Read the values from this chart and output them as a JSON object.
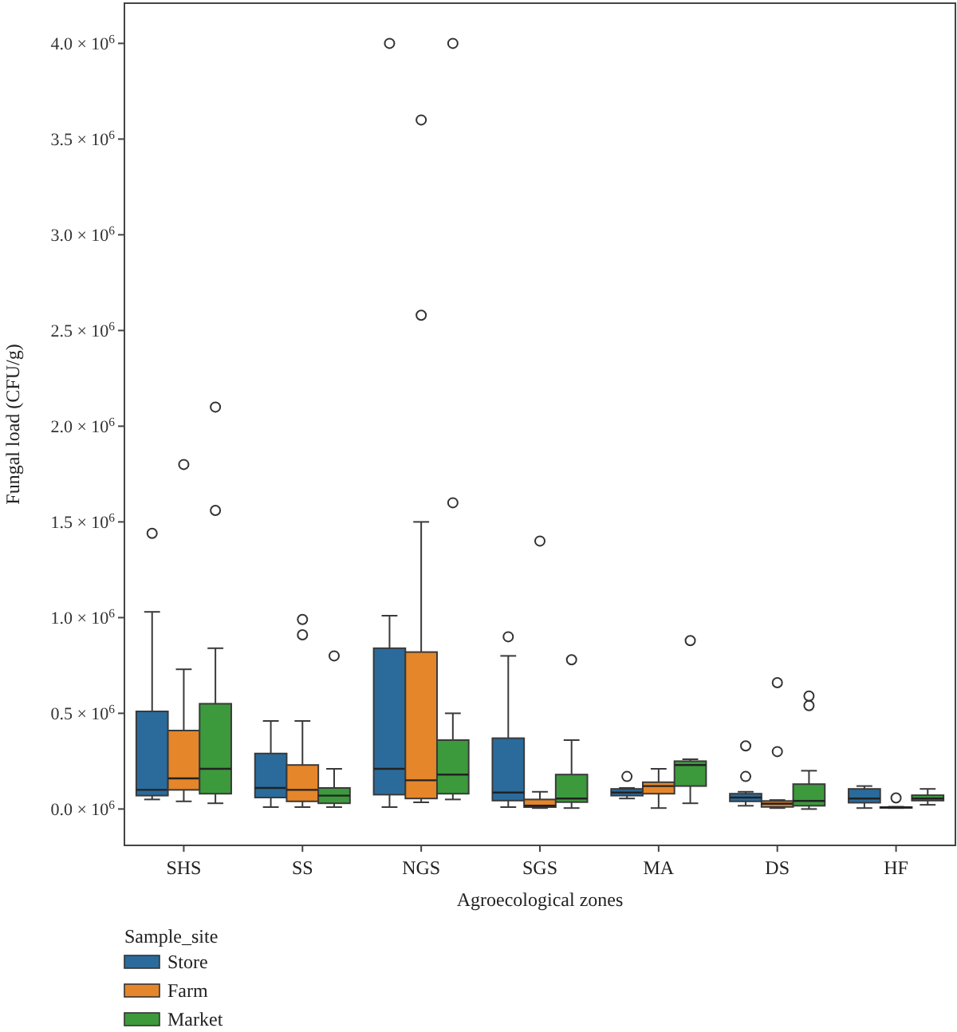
{
  "chart_data": {
    "type": "box",
    "xlabel": "Agroecological zones",
    "ylabel": "Fungal load (CFU/g)",
    "legend_title": "Sample_site",
    "legend": "bottom left",
    "categories": [
      "SHS",
      "SS",
      "NGS",
      "SGS",
      "MA",
      "DS",
      "HF"
    ],
    "ylim": [
      -190000,
      4210000
    ],
    "yticks": [
      {
        "value": 0,
        "label": "0.0 × 10$^{6}$"
      },
      {
        "value": 500000,
        "label": "0.5 × 10$^{6}$"
      },
      {
        "value": 1000000,
        "label": "1.0 × 10$^{6}$"
      },
      {
        "value": 1500000,
        "label": "1.5 × 10$^{6}$"
      },
      {
        "value": 2000000,
        "label": "2.0 × 10$^{6}$"
      },
      {
        "value": 2500000,
        "label": "2.5 × 10$^{6}$"
      },
      {
        "value": 3000000,
        "label": "3.0 × 10$^{6}$"
      },
      {
        "value": 3500000,
        "label": "3.5 × 10$^{6}$"
      },
      {
        "value": 4000000,
        "label": "4.0 × 10$^{6}$"
      }
    ],
    "series": [
      {
        "name": "Store",
        "color": "#2a6b9c",
        "boxes": [
          {
            "low": 50000,
            "q1": 70000,
            "median": 100000,
            "q3": 510000,
            "high": 1030000,
            "outliers": [
              1440000
            ]
          },
          {
            "low": 10000,
            "q1": 60000,
            "median": 110000,
            "q3": 290000,
            "high": 460000
          },
          {
            "low": 10000,
            "q1": 75000,
            "median": 210000,
            "q3": 840000,
            "high": 1010000,
            "outliers": [
              4000000
            ]
          },
          {
            "low": 10000,
            "q1": 44000,
            "median": 86000,
            "q3": 370000,
            "high": 800000,
            "outliers": [
              900000
            ]
          },
          {
            "low": 55000,
            "q1": 70000,
            "median": 86000,
            "q3": 105000,
            "high": 110000,
            "outliers": [
              170000
            ]
          },
          {
            "low": 17000,
            "q1": 40000,
            "median": 60000,
            "q3": 80000,
            "high": 90000,
            "outliers": [
              170000,
              330000
            ]
          },
          {
            "low": 5000,
            "q1": 33000,
            "median": 55000,
            "q3": 105000,
            "high": 120000
          }
        ]
      },
      {
        "name": "Farm",
        "color": "#e5862a",
        "boxes": [
          {
            "low": 40000,
            "q1": 100000,
            "median": 160000,
            "q3": 410000,
            "high": 730000,
            "outliers": [
              1800000
            ]
          },
          {
            "low": 10000,
            "q1": 40000,
            "median": 100000,
            "q3": 230000,
            "high": 460000,
            "outliers": [
              910000,
              990000
            ]
          },
          {
            "low": 35000,
            "q1": 55000,
            "median": 150000,
            "q3": 820000,
            "high": 1500000,
            "outliers": [
              2580000,
              3600000
            ]
          },
          {
            "low": 5000,
            "q1": 10000,
            "median": 17000,
            "q3": 50000,
            "high": 90000,
            "outliers": [
              1400000
            ]
          },
          {
            "low": 5000,
            "q1": 80000,
            "median": 120000,
            "q3": 140000,
            "high": 210000
          },
          {
            "low": 5000,
            "q1": 11000,
            "median": 28000,
            "q3": 42000,
            "high": 47000,
            "outliers": [
              300000,
              660000
            ]
          },
          {
            "low": 5000,
            "q1": 8000,
            "median": 8000,
            "q3": 10000,
            "high": 12000,
            "outliers": [
              58000
            ]
          }
        ]
      },
      {
        "name": "Market",
        "color": "#3c9a3c",
        "boxes": [
          {
            "low": 30000,
            "q1": 80000,
            "median": 210000,
            "q3": 550000,
            "high": 840000,
            "outliers": [
              1560000,
              2100000
            ]
          },
          {
            "low": 10000,
            "q1": 30000,
            "median": 70000,
            "q3": 110000,
            "high": 210000,
            "outliers": [
              800000
            ]
          },
          {
            "low": 50000,
            "q1": 80000,
            "median": 180000,
            "q3": 360000,
            "high": 500000,
            "outliers": [
              1600000,
              4000000
            ]
          },
          {
            "low": 5000,
            "q1": 36000,
            "median": 55000,
            "q3": 180000,
            "high": 360000,
            "outliers": [
              780000
            ]
          },
          {
            "low": 30000,
            "q1": 120000,
            "median": 230000,
            "q3": 250000,
            "high": 260000,
            "outliers": [
              880000
            ]
          },
          {
            "low": 0,
            "q1": 17000,
            "median": 42000,
            "q3": 130000,
            "high": 200000,
            "outliers": [
              540000,
              590000
            ]
          },
          {
            "low": 22000,
            "q1": 44000,
            "median": 55000,
            "q3": 72000,
            "high": 105000
          }
        ]
      }
    ]
  }
}
